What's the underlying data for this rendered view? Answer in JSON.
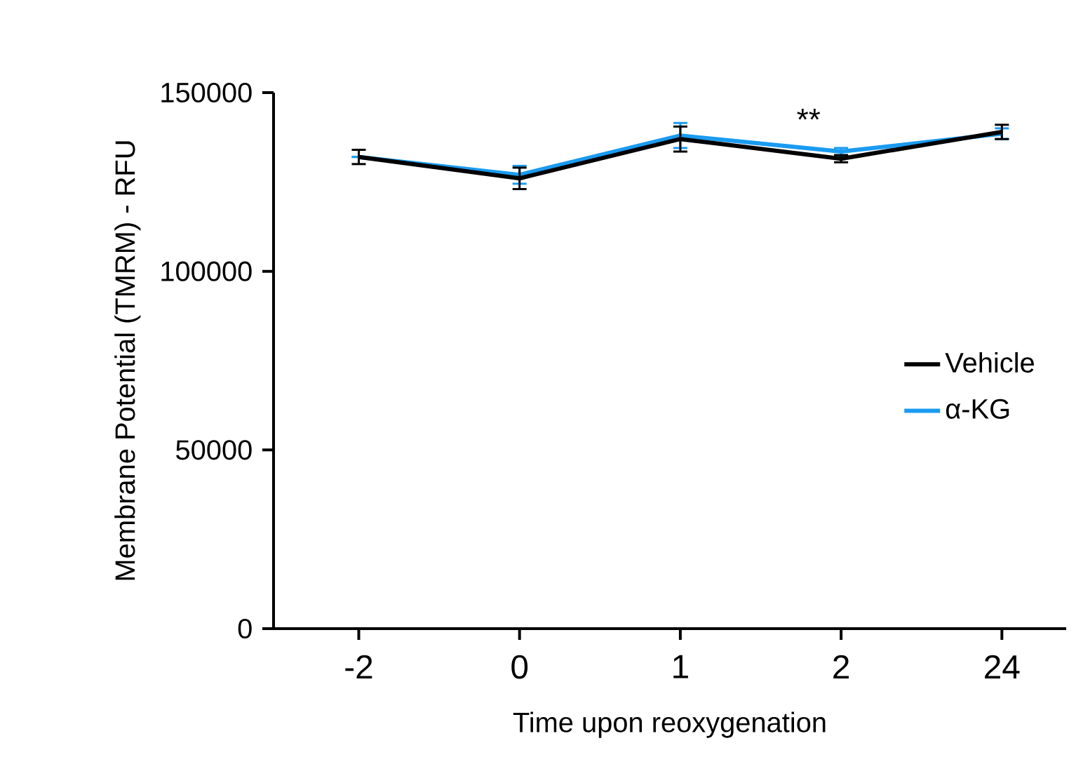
{
  "chart_data": {
    "type": "line",
    "xlabel": "Time upon reoxygenation",
    "ylabel": "Membrane Potential (TMRM) - RFU",
    "categories": [
      "-2",
      "0",
      "1",
      "2",
      "24"
    ],
    "series": [
      {
        "name": "Vehicle",
        "color": "#000000",
        "values": [
          132000,
          126000,
          137000,
          131500,
          139000
        ],
        "errors": [
          2000,
          3000,
          3500,
          1000,
          2000
        ]
      },
      {
        "name": "α-KG",
        "color": "#1a9bf0",
        "values": [
          132000,
          127000,
          138000,
          133500,
          138500
        ],
        "errors": [
          null,
          2500,
          3500,
          1000,
          1500
        ]
      }
    ],
    "ylim": [
      0,
      150000
    ],
    "yticks": [
      0,
      50000,
      100000,
      150000
    ],
    "annotations": [
      "**"
    ],
    "legend": "right",
    "line_style": "solid"
  }
}
